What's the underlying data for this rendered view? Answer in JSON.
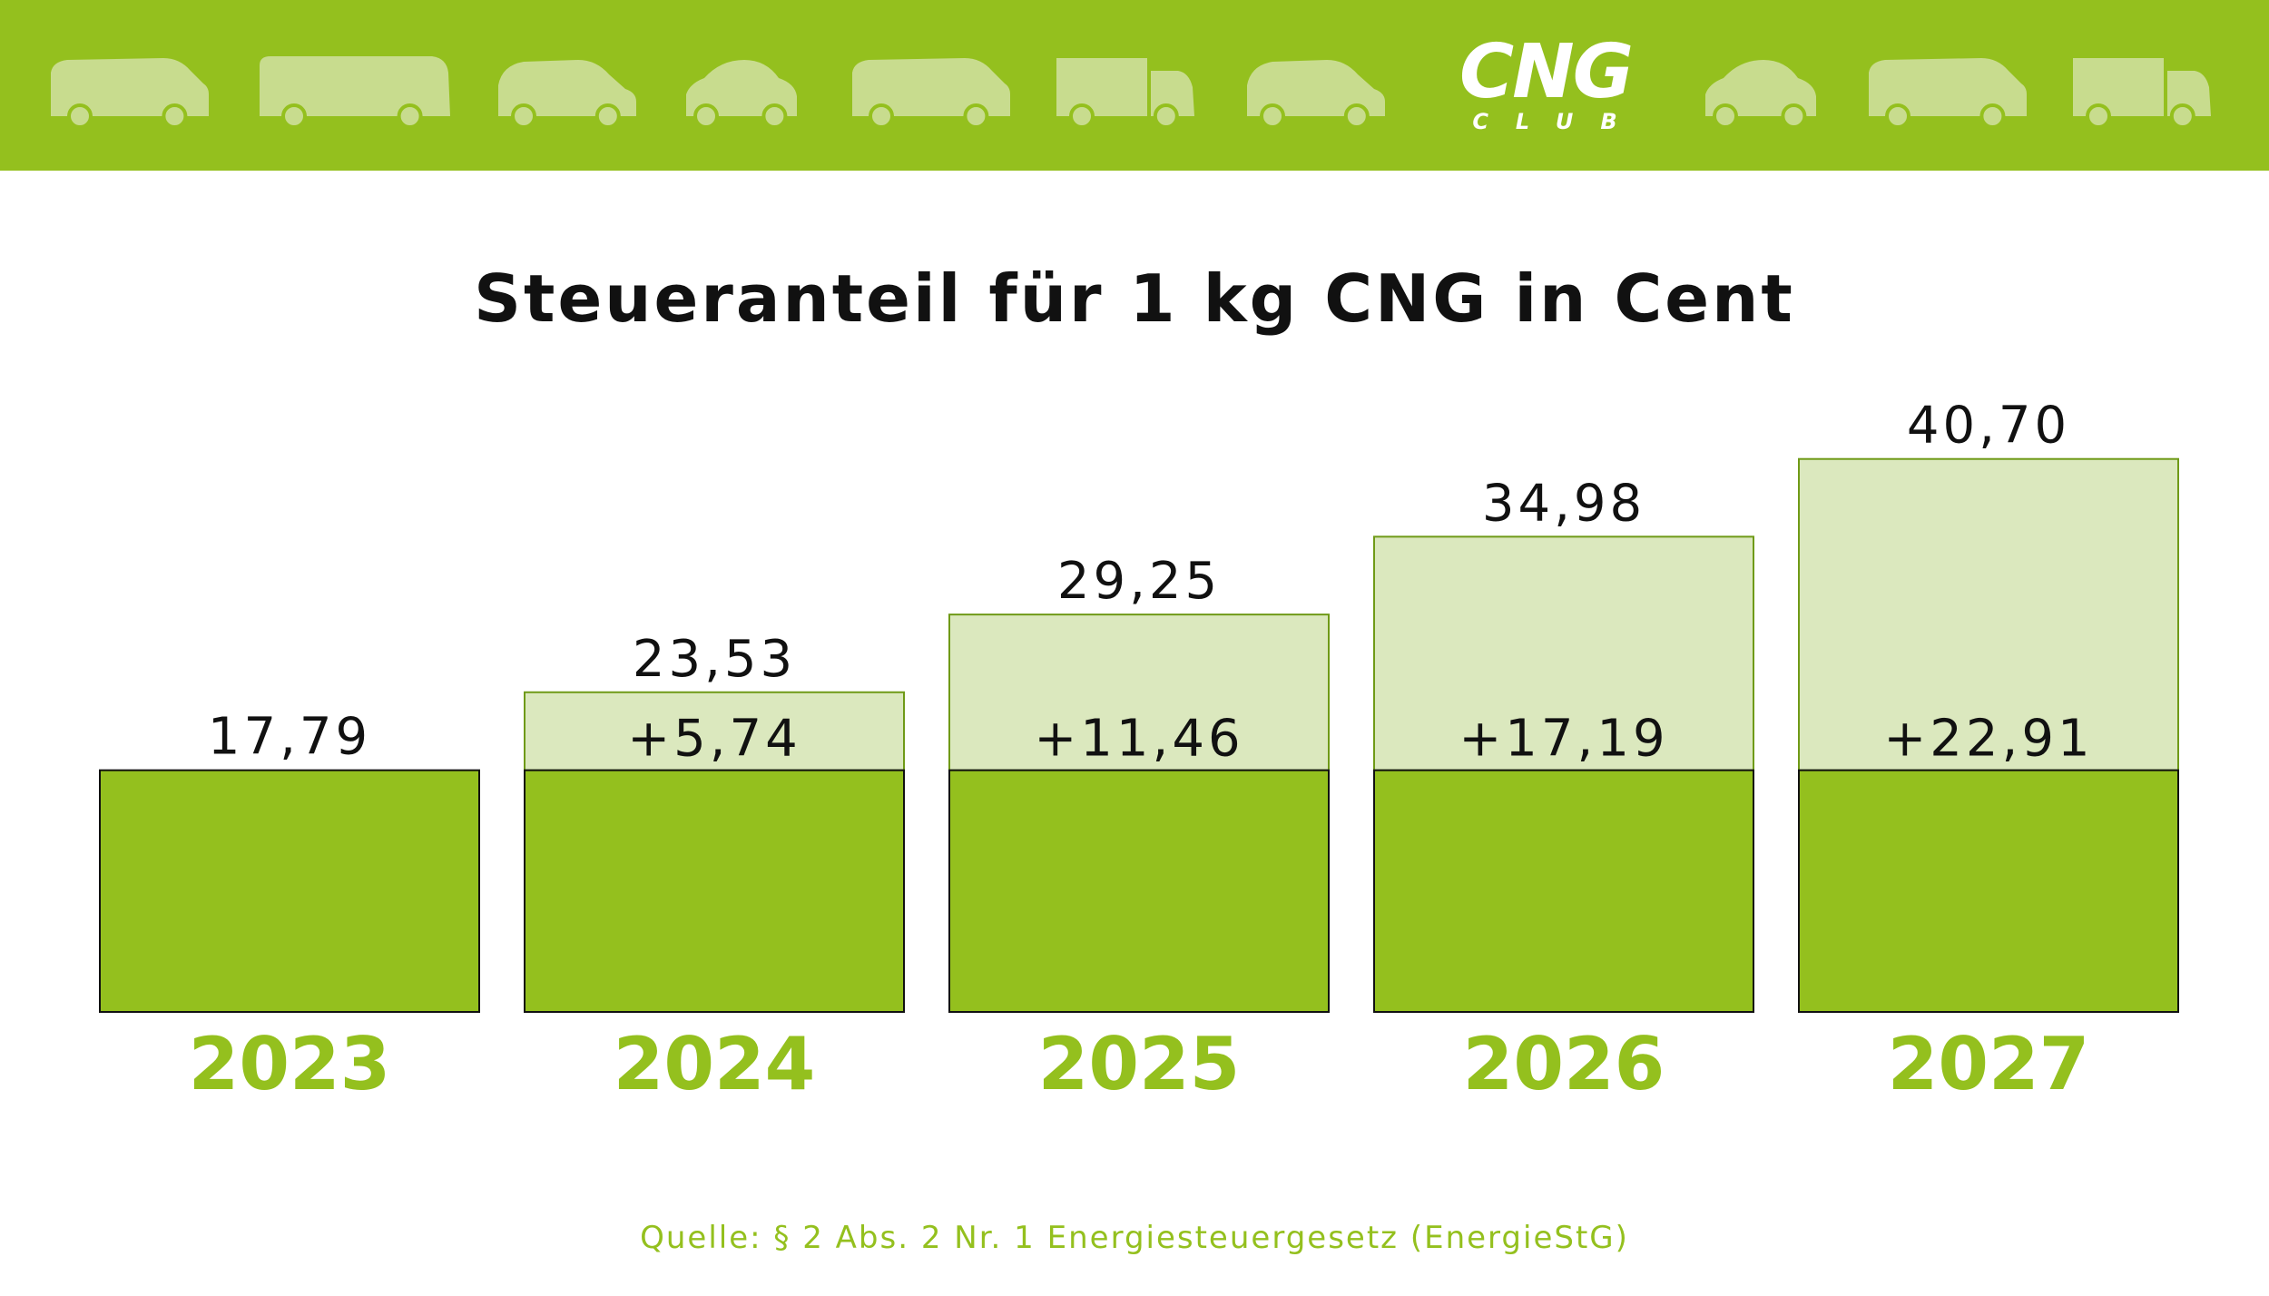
{
  "colors": {
    "brand_green": "#94c01e",
    "light_green": "#dbe8be",
    "vehicle_silhouette": "#c8dc8e",
    "text_dark": "#111111",
    "white": "#ffffff"
  },
  "banner": {
    "logo_main": "CNG",
    "logo_sub": "CLUB",
    "vehicle_icons": [
      "van-icon",
      "bus-icon",
      "minivan-icon",
      "small-car-icon",
      "van-icon",
      "truck-icon",
      "minivan-icon",
      "small-car-icon",
      "van-icon",
      "truck-icon"
    ]
  },
  "chart_data": {
    "type": "bar",
    "title": "Steueranteil für 1 kg CNG in Cent",
    "categories": [
      "2023",
      "2024",
      "2025",
      "2026",
      "2027"
    ],
    "series": [
      {
        "values": [
          17.79,
          17.79,
          17.79,
          17.79,
          17.79
        ]
      },
      {
        "values": [
          0,
          5.74,
          11.46,
          17.19,
          22.91
        ]
      }
    ],
    "totals": [
      17.79,
      23.53,
      29.25,
      34.98,
      40.7
    ],
    "total_labels": [
      "17,79",
      "23,53",
      "29,25",
      "34,98",
      "40,70"
    ],
    "increase_labels": [
      "",
      "+5,74",
      "+11,46",
      "+17,19",
      "+22,91"
    ],
    "stacked": true,
    "legend": "none",
    "grid": false,
    "axes_visible": false
  },
  "footer": {
    "source": "Quelle: § 2 Abs. 2 Nr. 1 Energiesteuergesetz (EnergieStG)"
  }
}
